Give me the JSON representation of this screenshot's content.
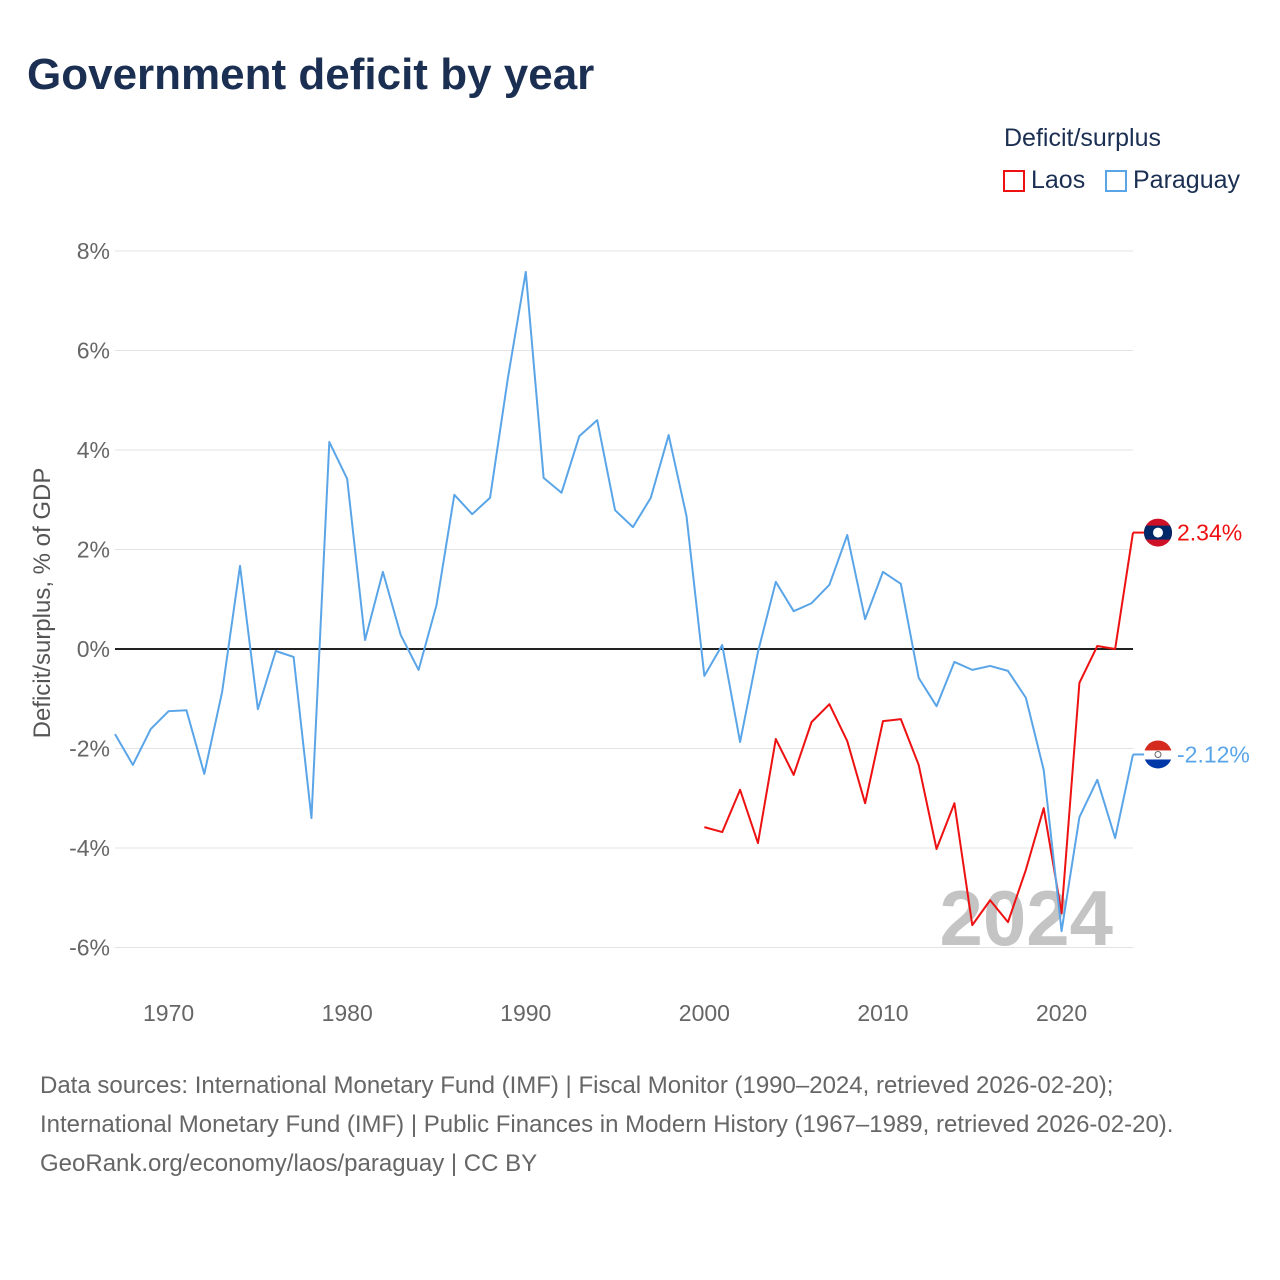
{
  "chart_data": {
    "type": "line",
    "title": "Government deficit by year",
    "ylabel": "Deficit/surplus, % of GDP",
    "xlabel": "",
    "xlim": [
      1967,
      2024
    ],
    "ylim": [
      -7,
      8
    ],
    "yticks": [
      8,
      6,
      4,
      2,
      0,
      -2,
      -4,
      -6
    ],
    "ytick_labels": [
      "8%",
      "6%",
      "4%",
      "2%",
      "0%",
      "-2%",
      "-4%",
      "-6%"
    ],
    "xticks": [
      1970,
      1980,
      1990,
      2000,
      2010,
      2020
    ],
    "xtick_labels": [
      "1970",
      "1980",
      "1990",
      "2000",
      "2010",
      "2020"
    ],
    "grid": true,
    "legend_title": "Deficit/surplus",
    "legend_placement": "top-right",
    "watermark_year": "2024",
    "series": [
      {
        "name": "Laos",
        "color": "#ee1111",
        "end_label": "2.34%",
        "x": [
          2000,
          2001,
          2002,
          2003,
          2004,
          2005,
          2006,
          2007,
          2008,
          2009,
          2010,
          2011,
          2012,
          2013,
          2014,
          2015,
          2016,
          2017,
          2018,
          2019,
          2020,
          2021,
          2022,
          2023,
          2024
        ],
        "values": [
          -3.58,
          -3.68,
          -2.83,
          -3.9,
          -1.81,
          -2.53,
          -1.47,
          -1.11,
          -1.85,
          -3.1,
          -1.45,
          -1.41,
          -2.33,
          -4.02,
          -3.1,
          -5.55,
          -5.05,
          -5.49,
          -4.44,
          -3.2,
          -5.31,
          -0.68,
          0.06,
          0.0,
          2.34
        ]
      },
      {
        "name": "Paraguay",
        "color": "#5aa5e8",
        "end_label": "-2.12%",
        "x": [
          1967,
          1968,
          1969,
          1970,
          1971,
          1972,
          1973,
          1974,
          1975,
          1976,
          1977,
          1978,
          1979,
          1980,
          1981,
          1982,
          1983,
          1984,
          1985,
          1986,
          1987,
          1988,
          1989,
          1990,
          1991,
          1992,
          1993,
          1994,
          1995,
          1996,
          1997,
          1998,
          1999,
          2000,
          2001,
          2002,
          2003,
          2004,
          2005,
          2006,
          2007,
          2008,
          2009,
          2010,
          2011,
          2012,
          2013,
          2014,
          2015,
          2016,
          2017,
          2018,
          2019,
          2020,
          2021,
          2022,
          2023,
          2024
        ],
        "values": [
          -1.71,
          -2.33,
          -1.61,
          -1.25,
          -1.23,
          -2.51,
          -0.86,
          1.67,
          -1.21,
          -0.04,
          -0.16,
          -3.4,
          4.16,
          3.42,
          0.18,
          1.55,
          0.28,
          -0.42,
          0.88,
          3.1,
          2.71,
          3.04,
          5.45,
          7.58,
          3.44,
          3.14,
          4.28,
          4.6,
          2.79,
          2.45,
          3.04,
          4.3,
          2.67,
          -0.54,
          0.08,
          -1.87,
          -0.06,
          1.35,
          0.76,
          0.92,
          1.29,
          2.29,
          0.6,
          1.55,
          1.31,
          -0.58,
          -1.15,
          -0.26,
          -0.42,
          -0.34,
          -0.44,
          -0.98,
          -2.43,
          -5.67,
          -3.38,
          -2.63,
          -3.8,
          -2.12
        ]
      }
    ]
  },
  "sources": {
    "line1": "Data sources: International Monetary Fund (IMF) | Fiscal Monitor (1990–2024, retrieved 2026-02-20); International Monetary Fund (IMF) | Public Finances in Modern History (1967–1989, retrieved 2026-02-20).",
    "line2": "GeoRank.org/economy/laos/paraguay | CC BY"
  }
}
